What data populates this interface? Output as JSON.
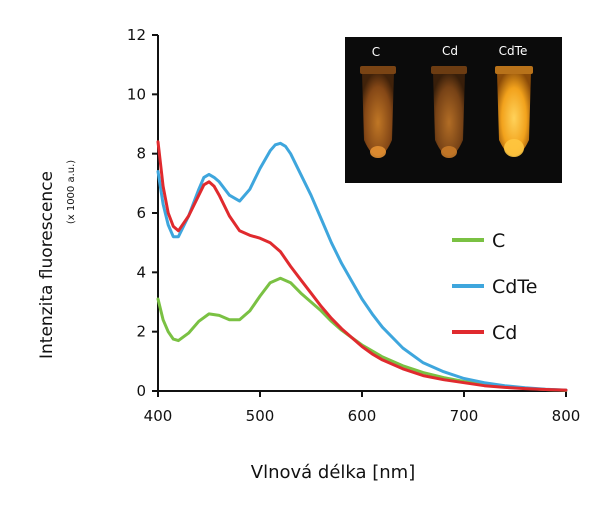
{
  "chart_data": {
    "type": "line",
    "title": "",
    "xlabel": "Vlnová délka [nm]",
    "ylabel": "Intenzita fluorescence",
    "ylabel_unit": "(x 1000 a.u.)",
    "xlim": [
      400,
      800
    ],
    "ylim": [
      0,
      12
    ],
    "xticks": [
      "400",
      "500",
      "600",
      "700",
      "800"
    ],
    "yticks": [
      "0",
      "2",
      "4",
      "6",
      "8",
      "10",
      "12"
    ],
    "legend_position": "right",
    "series": [
      {
        "name": "C",
        "color": "#7ac143",
        "x": [
          400,
          405,
          410,
          415,
          420,
          430,
          440,
          450,
          460,
          470,
          480,
          490,
          500,
          510,
          520,
          530,
          540,
          550,
          560,
          570,
          580,
          590,
          600,
          610,
          620,
          640,
          660,
          680,
          700,
          720,
          740,
          760,
          780,
          800
        ],
        "y": [
          3.1,
          2.4,
          2.0,
          1.75,
          1.7,
          1.95,
          2.35,
          2.6,
          2.55,
          2.4,
          2.4,
          2.7,
          3.2,
          3.65,
          3.8,
          3.65,
          3.3,
          3.0,
          2.7,
          2.35,
          2.05,
          1.8,
          1.55,
          1.35,
          1.15,
          0.85,
          0.62,
          0.45,
          0.32,
          0.22,
          0.14,
          0.09,
          0.05,
          0.02
        ]
      },
      {
        "name": "CdTe",
        "color": "#3ea6dd",
        "x": [
          400,
          405,
          410,
          415,
          420,
          430,
          440,
          445,
          450,
          455,
          460,
          470,
          480,
          490,
          500,
          510,
          515,
          520,
          525,
          530,
          540,
          550,
          560,
          570,
          580,
          590,
          600,
          610,
          620,
          640,
          660,
          680,
          700,
          720,
          740,
          760,
          780,
          800
        ],
        "y": [
          7.4,
          6.3,
          5.6,
          5.2,
          5.2,
          5.9,
          6.8,
          7.2,
          7.3,
          7.2,
          7.05,
          6.6,
          6.4,
          6.8,
          7.5,
          8.1,
          8.3,
          8.35,
          8.25,
          8.0,
          7.3,
          6.6,
          5.8,
          5.0,
          4.3,
          3.7,
          3.1,
          2.6,
          2.15,
          1.45,
          0.95,
          0.65,
          0.42,
          0.28,
          0.18,
          0.11,
          0.06,
          0.03
        ]
      },
      {
        "name": "Cd",
        "color": "#e02a2e",
        "x": [
          400,
          405,
          410,
          415,
          420,
          430,
          440,
          445,
          450,
          455,
          460,
          470,
          480,
          490,
          500,
          510,
          520,
          530,
          540,
          550,
          560,
          570,
          580,
          590,
          600,
          610,
          620,
          640,
          660,
          680,
          700,
          720,
          740,
          760,
          780,
          800
        ],
        "y": [
          8.4,
          6.9,
          6.0,
          5.55,
          5.4,
          5.9,
          6.6,
          6.95,
          7.05,
          6.9,
          6.6,
          5.9,
          5.4,
          5.25,
          5.15,
          5.0,
          4.7,
          4.2,
          3.75,
          3.3,
          2.85,
          2.45,
          2.1,
          1.8,
          1.5,
          1.25,
          1.05,
          0.75,
          0.52,
          0.38,
          0.28,
          0.18,
          0.12,
          0.08,
          0.05,
          0.03
        ]
      }
    ],
    "inset": {
      "labels": [
        "C",
        "Cd",
        "CdTe"
      ],
      "colors": {
        "background": "#0b0b0b",
        "C": "#c8761e",
        "Cd": "#b86a20",
        "CdTe": "#f2a21c"
      }
    },
    "axis_color": "#111111"
  }
}
